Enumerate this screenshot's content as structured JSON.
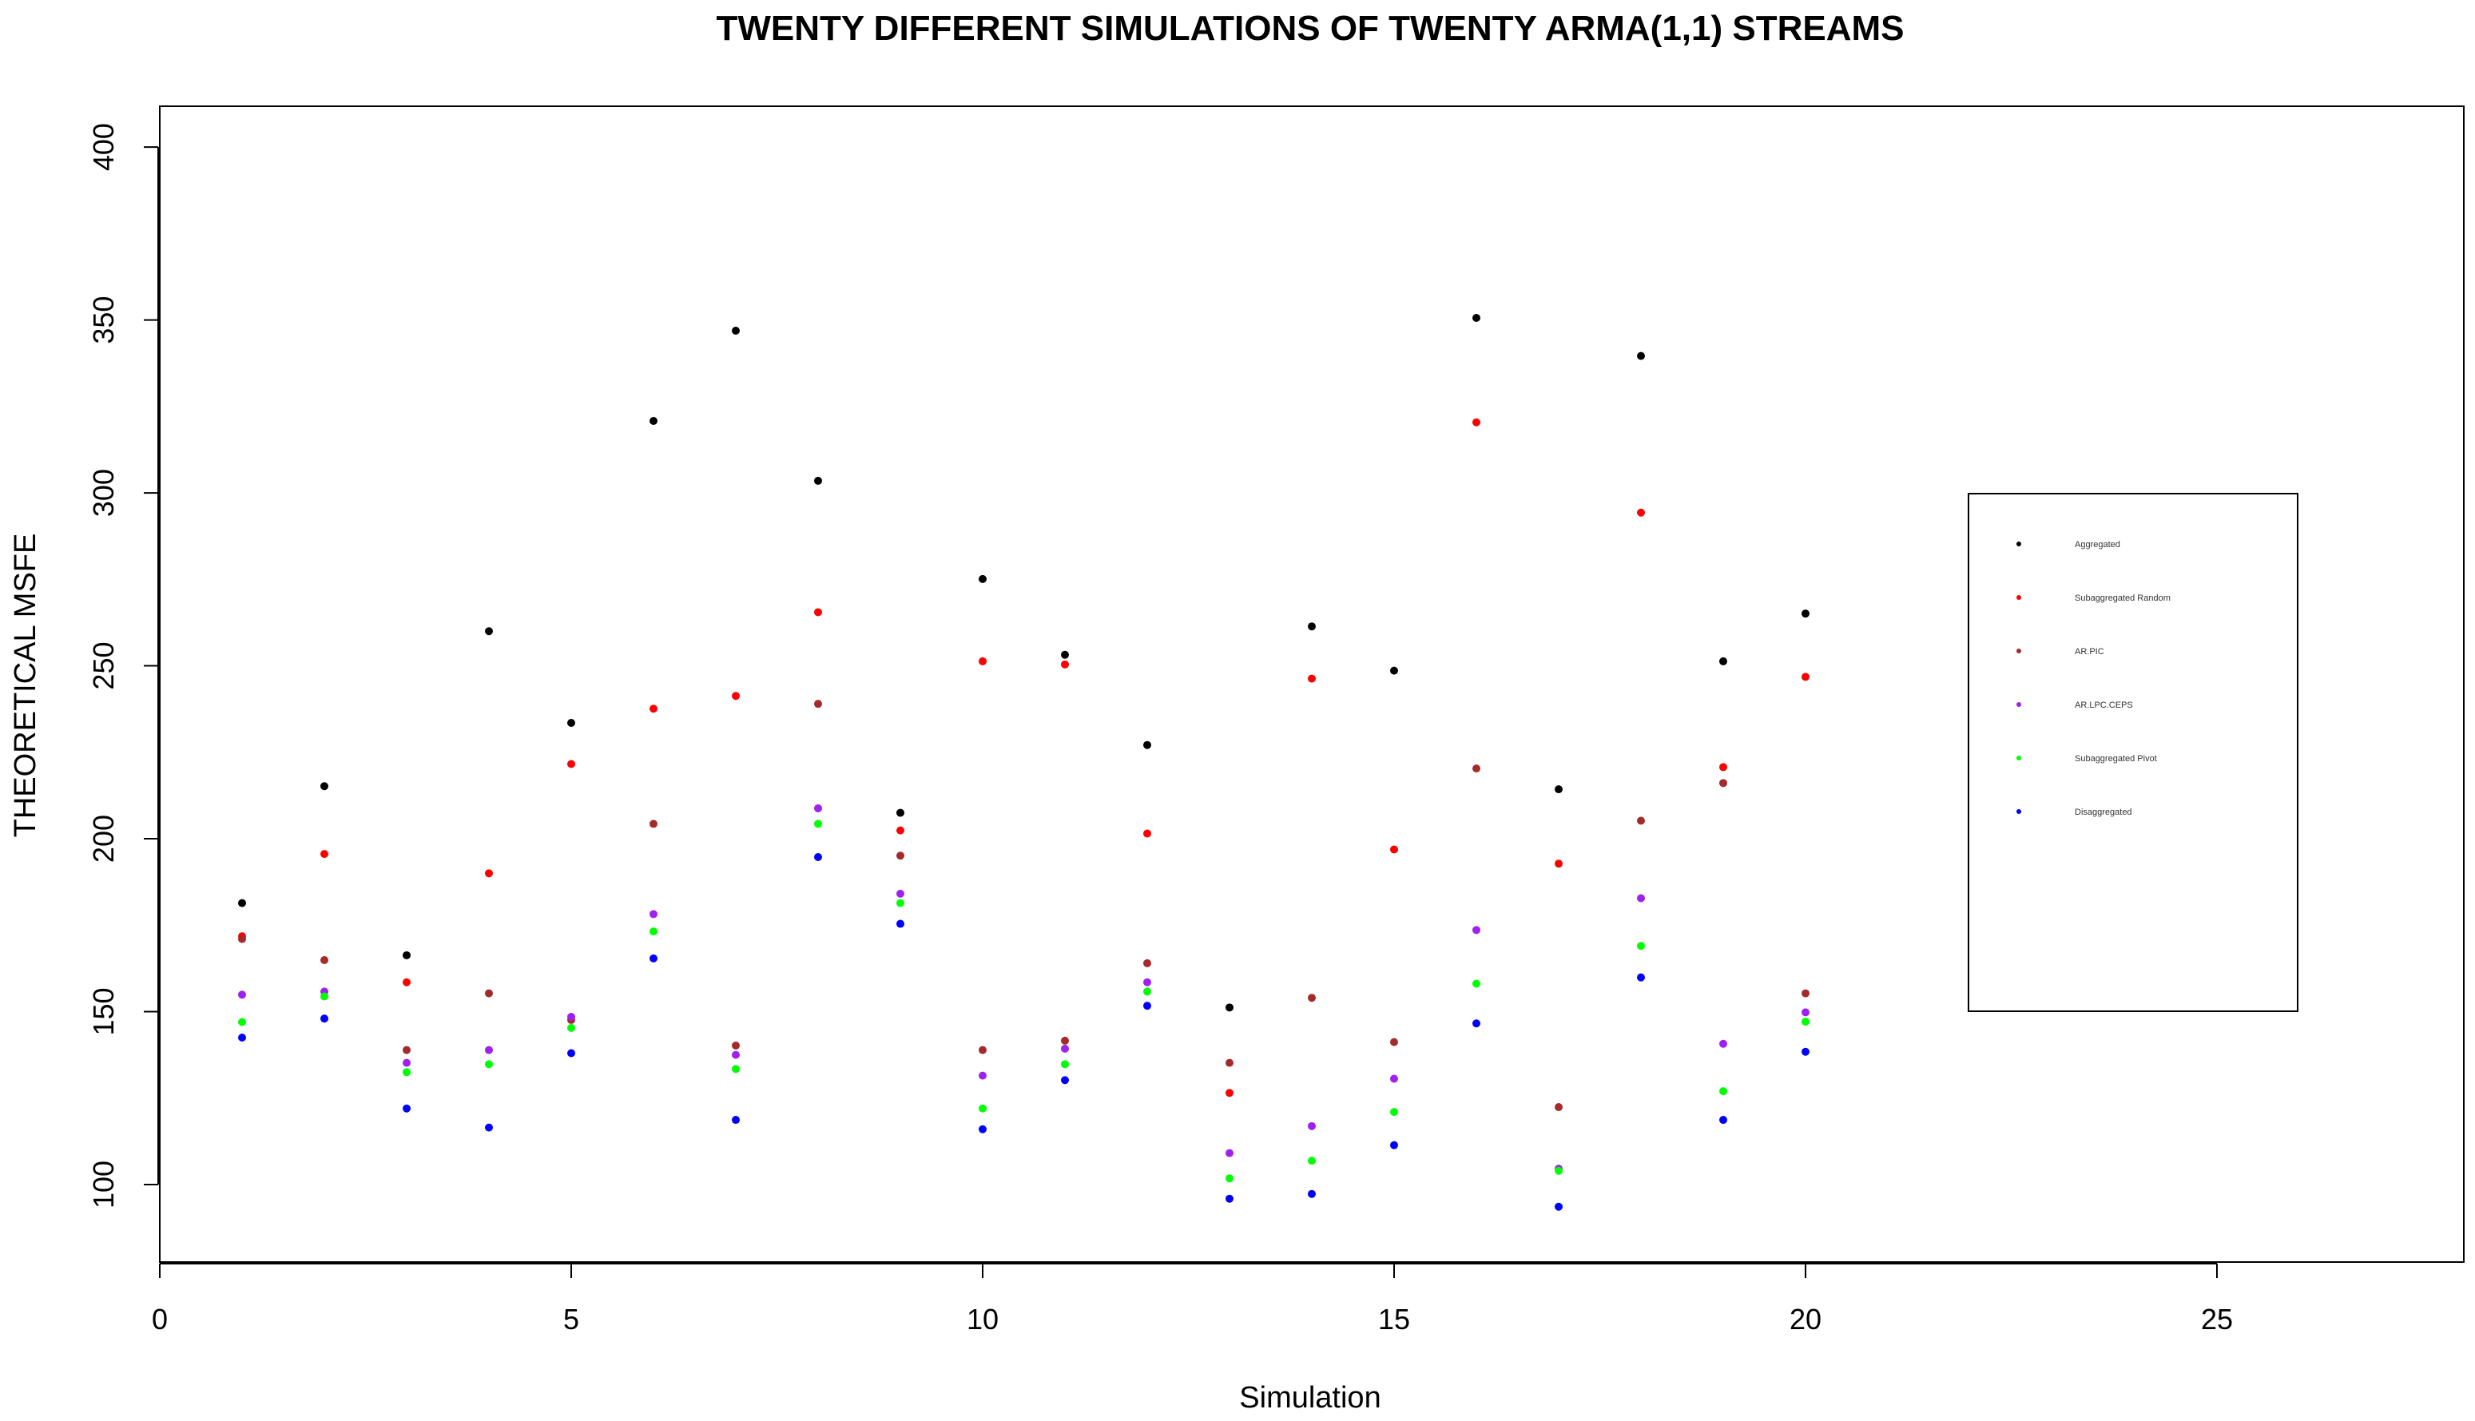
{
  "chart_data": {
    "type": "scatter",
    "title": "TWENTY DIFFERENT SIMULATIONS OF TWENTY ARMA(1,1) STREAMS",
    "xlabel": "Simulation",
    "ylabel": "THEORETICAL  MSFE",
    "xlim": [
      0,
      28
    ],
    "ylim": [
      77.6,
      411.8
    ],
    "xticks": [
      0,
      5,
      10,
      15,
      20,
      25
    ],
    "yticks": [
      100,
      150,
      200,
      250,
      300,
      350,
      400
    ],
    "grid": false,
    "legend_position": "right",
    "x": [
      1,
      2,
      3,
      4,
      5,
      6,
      7,
      8,
      9,
      10,
      11,
      12,
      13,
      14,
      15,
      16,
      17,
      18,
      19,
      20
    ],
    "series": [
      {
        "name": "Aggregated",
        "color": "#000000",
        "values": [
          181.4,
          215.2,
          166.3,
          260.0,
          233.5,
          320.8,
          346.9,
          303.5,
          207.5,
          275.1,
          253.2,
          227.1,
          151.2,
          261.4,
          248.6,
          350.6,
          214.3,
          339.6,
          251.3,
          265.1
        ]
      },
      {
        "name": "Subaggregated Random",
        "color": "#ff0000",
        "values": [
          171.8,
          195.6,
          158.5,
          190.0,
          221.6,
          237.6,
          241.3,
          265.5,
          202.4,
          251.3,
          250.4,
          201.5,
          126.5,
          246.3,
          196.9,
          320.4,
          192.8,
          294.3,
          220.7,
          246.8
        ]
      },
      {
        "name": "AR.PIC",
        "color": "#a52a2a",
        "values": [
          171.0,
          164.9,
          138.9,
          155.3,
          147.6,
          204.3,
          140.2,
          239.0,
          195.1,
          138.9,
          141.6,
          164.0,
          135.2,
          154.0,
          141.2,
          220.3,
          122.4,
          205.2,
          216.1,
          155.3
        ]
      },
      {
        "name": "AR.LPC.CEPS",
        "color": "#a020f0",
        "values": [
          154.9,
          155.8,
          135.2,
          138.9,
          148.5,
          178.2,
          137.5,
          208.8,
          184.1,
          131.5,
          139.3,
          158.5,
          109.1,
          116.9,
          130.6,
          173.6,
          104.6,
          182.8,
          140.7,
          149.8
        ]
      },
      {
        "name": "Subaggregated Pivot",
        "color": "#00ff00",
        "values": [
          147.0,
          154.4,
          132.5,
          134.8,
          145.3,
          173.2,
          133.4,
          204.3,
          181.4,
          122.0,
          134.8,
          155.8,
          101.8,
          106.9,
          121.0,
          158.1,
          104.0,
          169.0,
          127.0,
          147.1
        ]
      },
      {
        "name": "Disaggregated",
        "color": "#0000ff",
        "values": [
          142.5,
          148.0,
          122.0,
          116.5,
          138.0,
          165.4,
          118.7,
          194.7,
          175.4,
          116.0,
          130.2,
          151.7,
          95.9,
          97.3,
          111.4,
          146.6,
          93.6,
          159.9,
          118.7,
          138.4
        ]
      }
    ]
  }
}
